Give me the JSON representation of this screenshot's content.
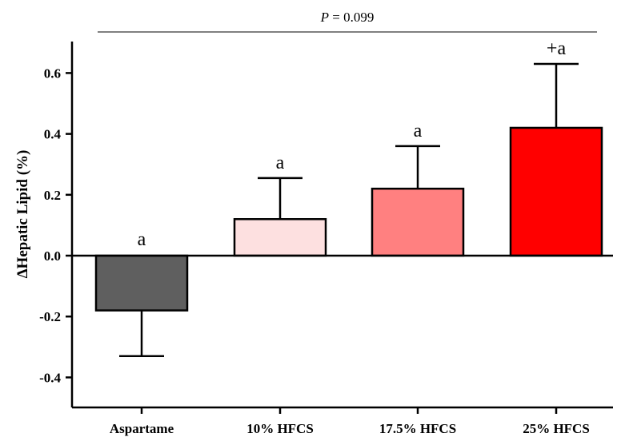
{
  "chart_data": {
    "type": "bar",
    "ylabel": "ΔHepatic Lipid (%)",
    "xlabel": "",
    "ylim": [
      -0.5,
      0.7
    ],
    "yticks": [
      -0.4,
      -0.2,
      0.0,
      0.2,
      0.4,
      0.6
    ],
    "ytick_labels": [
      "-0.4",
      "-0.2",
      "0.0",
      "0.2",
      "0.4",
      "0.6"
    ],
    "categories": [
      "Aspartame",
      "10% HFCS",
      "17.5% HFCS",
      "25% HFCS"
    ],
    "values": [
      -0.18,
      0.12,
      0.22,
      0.42
    ],
    "error": [
      0.15,
      0.135,
      0.14,
      0.21
    ],
    "colors": [
      "#5f5f5f",
      "#fde0e0",
      "#ff8080",
      "#ff0000"
    ],
    "annotations": [
      "a",
      "a",
      "a",
      "+a"
    ],
    "comparison": {
      "label_p": "P",
      "label_rest": " = 0.099"
    },
    "grid": false,
    "legend": "none"
  }
}
